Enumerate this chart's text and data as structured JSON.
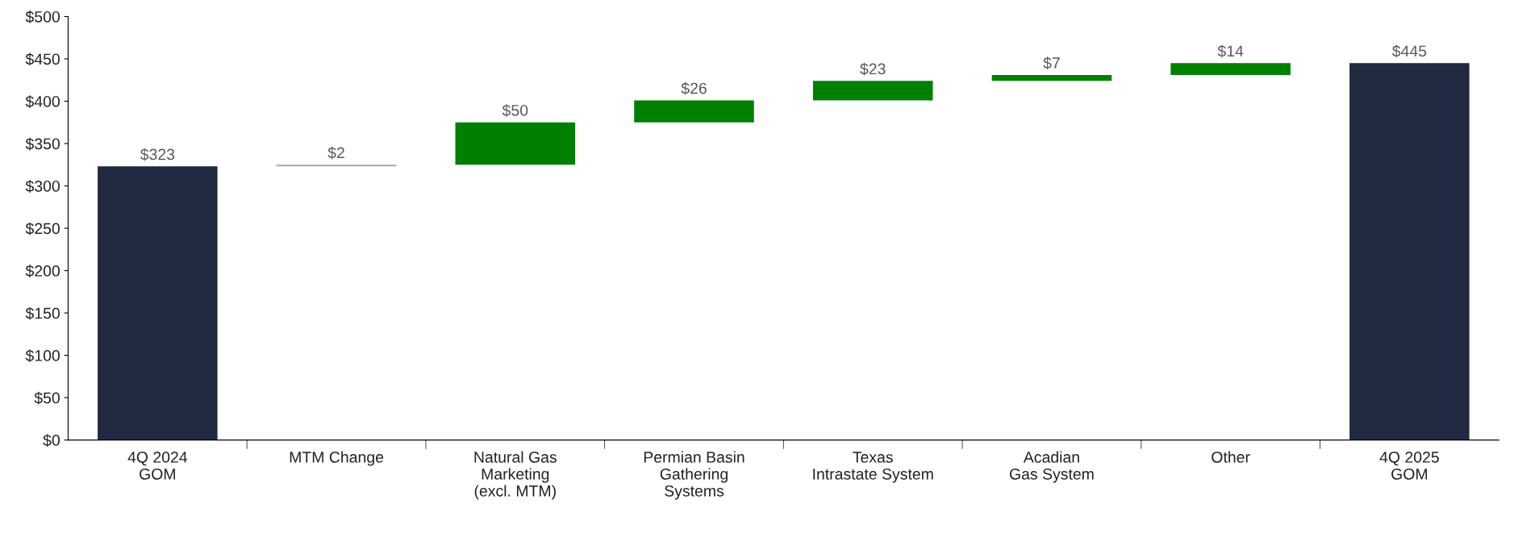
{
  "chart_data": {
    "type": "bar",
    "categories": [
      "4Q 2024\nGOM",
      "MTM Change",
      "Natural Gas\nMarketing\n(excl. MTM)",
      "Permian Basin\nGathering\nSystems",
      "Texas\nIntrastate System",
      "Acadian\nGas System",
      "Other",
      "4Q 2025\nGOM"
    ],
    "values": [
      323,
      2,
      50,
      26,
      23,
      7,
      14,
      445
    ],
    "base": [
      0,
      323,
      325,
      375,
      401,
      424,
      431,
      0
    ],
    "colors": [
      "#222a42",
      "#a6a6a6",
      "#008000",
      "#008000",
      "#008000",
      "#008000",
      "#008000",
      "#222a42"
    ],
    "value_labels": [
      "$323",
      "$2",
      "$50",
      "$26",
      "$23",
      "$7",
      "$14",
      "$445"
    ],
    "ylim": [
      0,
      500
    ],
    "yticks": [
      {
        "value": 0,
        "label": "$0"
      },
      {
        "value": 50,
        "label": "$50"
      },
      {
        "value": 100,
        "label": "$100"
      },
      {
        "value": 150,
        "label": "$150"
      },
      {
        "value": 200,
        "label": "$200"
      },
      {
        "value": 250,
        "label": "$250"
      },
      {
        "value": 300,
        "label": "$300"
      },
      {
        "value": 350,
        "label": "$350"
      },
      {
        "value": 400,
        "label": "$400"
      },
      {
        "value": 450,
        "label": "$450"
      },
      {
        "value": 500,
        "label": "$500"
      }
    ],
    "grid": false,
    "legend": false
  }
}
